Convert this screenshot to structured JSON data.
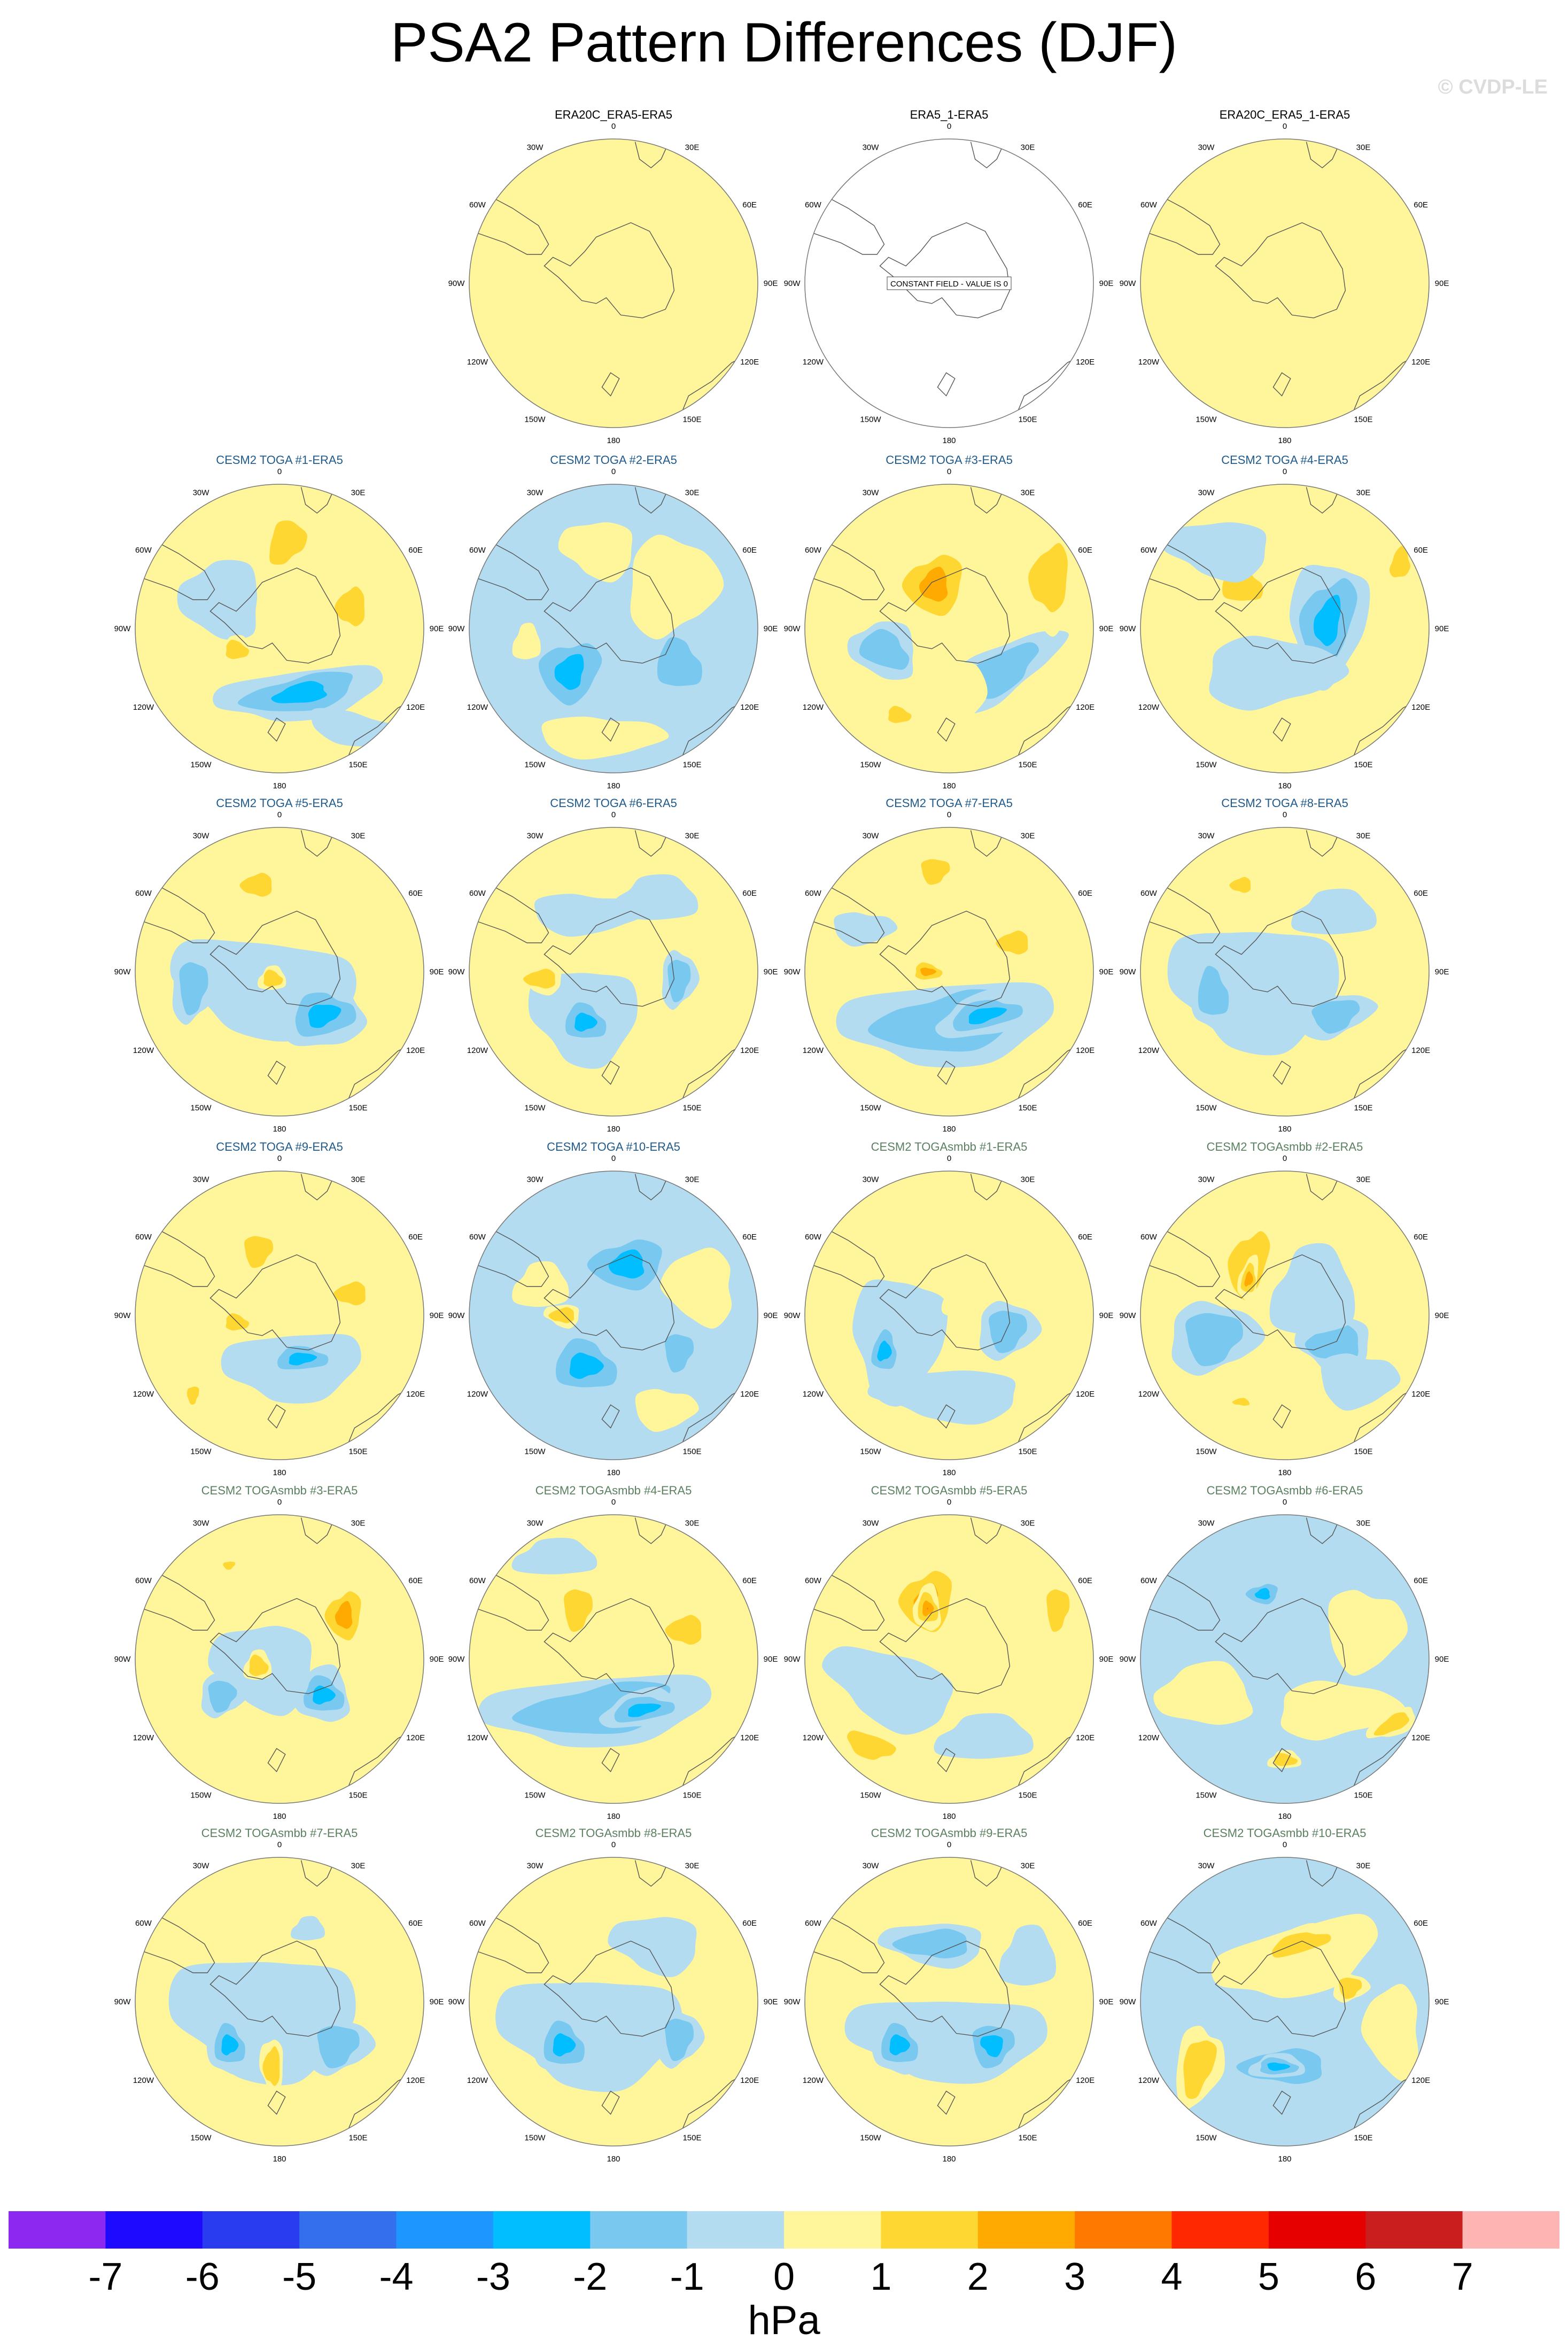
{
  "title": "PSA2 Pattern Differences (DJF)",
  "watermark": "© CVDP-LE",
  "colors": {
    "title_era": "#000000",
    "title_toga": "#1e5a8c",
    "title_togasmbb": "#5a8060",
    "map_background": "#b4dcf0"
  },
  "constant_field_note": "CONSTANT FIELD - VALUE IS 0",
  "longitude_labels": [
    "0",
    "30E",
    "60E",
    "90E",
    "120E",
    "150E",
    "180",
    "150W",
    "120W",
    "90W",
    "60W",
    "30W"
  ],
  "chart_data": {
    "type": "polar-contour-panels",
    "projection": "south polar stereographic",
    "field": "PSA2 pattern difference",
    "season": "DJF",
    "units": "hPa",
    "panels": [
      {
        "label": "ERA20C_ERA5-ERA5",
        "row": 0,
        "col": 1,
        "group": "era",
        "pattern": 0
      },
      {
        "label": "ERA5_1-ERA5",
        "row": 0,
        "col": 2,
        "group": "era",
        "constant": true
      },
      {
        "label": "ERA20C_ERA5_1-ERA5",
        "row": 0,
        "col": 3,
        "group": "era",
        "pattern": 0
      },
      {
        "label": "CESM2 TOGA #1-ERA5",
        "row": 1,
        "col": 0,
        "group": "toga",
        "pattern": 1
      },
      {
        "label": "CESM2 TOGA #2-ERA5",
        "row": 1,
        "col": 1,
        "group": "toga",
        "pattern": 2
      },
      {
        "label": "CESM2 TOGA #3-ERA5",
        "row": 1,
        "col": 2,
        "group": "toga",
        "pattern": 3
      },
      {
        "label": "CESM2 TOGA #4-ERA5",
        "row": 1,
        "col": 3,
        "group": "toga",
        "pattern": 4
      },
      {
        "label": "CESM2 TOGA #5-ERA5",
        "row": 2,
        "col": 0,
        "group": "toga",
        "pattern": 5
      },
      {
        "label": "CESM2 TOGA #6-ERA5",
        "row": 2,
        "col": 1,
        "group": "toga",
        "pattern": 6
      },
      {
        "label": "CESM2 TOGA #7-ERA5",
        "row": 2,
        "col": 2,
        "group": "toga",
        "pattern": 7
      },
      {
        "label": "CESM2 TOGA #8-ERA5",
        "row": 2,
        "col": 3,
        "group": "toga",
        "pattern": 8
      },
      {
        "label": "CESM2 TOGA #9-ERA5",
        "row": 3,
        "col": 0,
        "group": "toga",
        "pattern": 9
      },
      {
        "label": "CESM2 TOGA #10-ERA5",
        "row": 3,
        "col": 1,
        "group": "toga",
        "pattern": 10
      },
      {
        "label": "CESM2 TOGAsmbb #1-ERA5",
        "row": 3,
        "col": 2,
        "group": "togasmbb",
        "pattern": 11
      },
      {
        "label": "CESM2 TOGAsmbb #2-ERA5",
        "row": 3,
        "col": 3,
        "group": "togasmbb",
        "pattern": 12
      },
      {
        "label": "CESM2 TOGAsmbb #3-ERA5",
        "row": 4,
        "col": 0,
        "group": "togasmbb",
        "pattern": 13
      },
      {
        "label": "CESM2 TOGAsmbb #4-ERA5",
        "row": 4,
        "col": 1,
        "group": "togasmbb",
        "pattern": 14
      },
      {
        "label": "CESM2 TOGAsmbb #5-ERA5",
        "row": 4,
        "col": 2,
        "group": "togasmbb",
        "pattern": 15
      },
      {
        "label": "CESM2 TOGAsmbb #6-ERA5",
        "row": 4,
        "col": 3,
        "group": "togasmbb",
        "pattern": 16
      },
      {
        "label": "CESM2 TOGAsmbb #7-ERA5",
        "row": 5,
        "col": 0,
        "group": "togasmbb",
        "pattern": 17
      },
      {
        "label": "CESM2 TOGAsmbb #8-ERA5",
        "row": 5,
        "col": 1,
        "group": "togasmbb",
        "pattern": 18
      },
      {
        "label": "CESM2 TOGAsmbb #9-ERA5",
        "row": 5,
        "col": 2,
        "group": "togasmbb",
        "pattern": 19
      },
      {
        "label": "CESM2 TOGAsmbb #10-ERA5",
        "row": 5,
        "col": 3,
        "group": "togasmbb",
        "pattern": 20
      }
    ],
    "colorbar": {
      "label": "hPa",
      "tick_labels": [
        "-7",
        "-6",
        "-5",
        "-4",
        "-3",
        "-2",
        "-1",
        "0",
        "1",
        "2",
        "3",
        "4",
        "5",
        "6",
        "7"
      ],
      "colors": [
        "#8c28f0",
        "#1e0aff",
        "#2a3cf0",
        "#3270ee",
        "#1e96ff",
        "#00beff",
        "#78c8f0",
        "#b4dcf0",
        "#fff59a",
        "#ffd732",
        "#ffaa00",
        "#ff7800",
        "#ff2800",
        "#e60000",
        "#c81e1e",
        "#ffb4b4"
      ]
    }
  }
}
